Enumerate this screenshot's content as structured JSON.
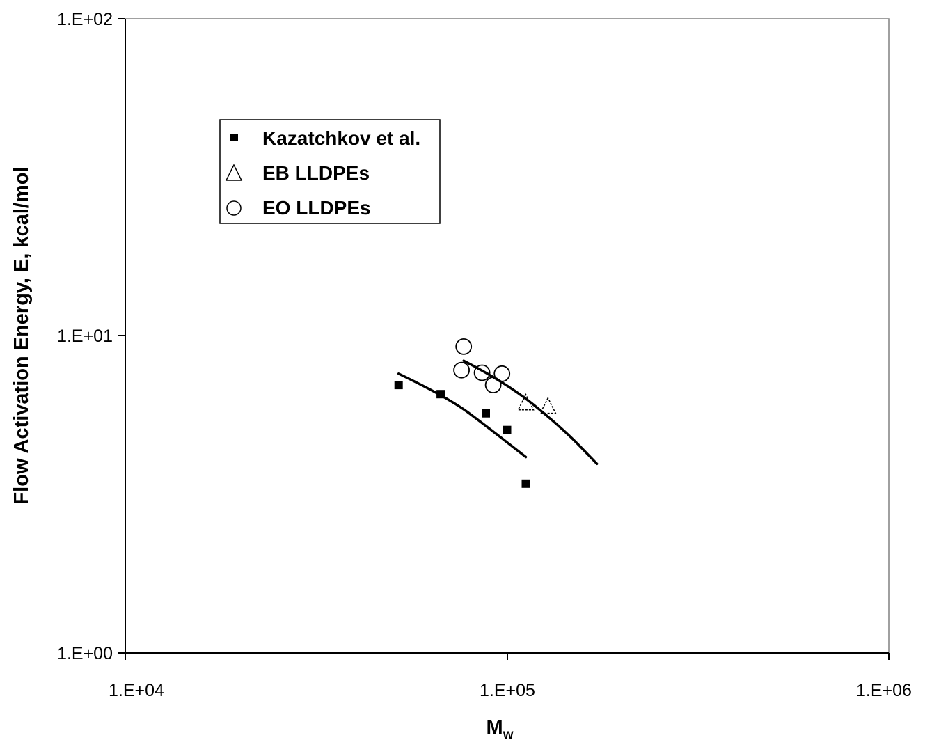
{
  "chart_data": {
    "type": "scatter",
    "title": "",
    "xlabel": "M",
    "xlabel_subscript": "w",
    "ylabel": "Flow Activation Energy, E, kcal/mol",
    "x_scale": "log",
    "y_scale": "log",
    "xlim": [
      10000,
      1000000
    ],
    "ylim": [
      1,
      100
    ],
    "x_ticks": [
      "1.E+04",
      "1.E+05",
      "1.E+06"
    ],
    "y_ticks": [
      "1.E+00",
      "1.E+01",
      "1.E+02"
    ],
    "grid": false,
    "legend_position": "upper-left",
    "series": [
      {
        "name": "Kazatchkov et al.",
        "marker": "filled-square",
        "color": "#000000",
        "points": [
          {
            "x": 52000,
            "y": 7.0
          },
          {
            "x": 67000,
            "y": 6.55
          },
          {
            "x": 88000,
            "y": 5.7
          },
          {
            "x": 100000,
            "y": 5.05
          },
          {
            "x": 112000,
            "y": 3.42
          }
        ]
      },
      {
        "name": "EB LLDPEs",
        "marker": "open-triangle",
        "color": "#000000",
        "points": [
          {
            "x": 112000,
            "y": 6.15
          },
          {
            "x": 128000,
            "y": 6.0
          }
        ]
      },
      {
        "name": "EO LLDPEs",
        "marker": "open-circle",
        "color": "#000000",
        "points": [
          {
            "x": 77000,
            "y": 9.25
          },
          {
            "x": 76000,
            "y": 7.8
          },
          {
            "x": 86000,
            "y": 7.65
          },
          {
            "x": 92000,
            "y": 7.0
          },
          {
            "x": 97000,
            "y": 7.6
          }
        ]
      }
    ],
    "fit_lines": [
      {
        "for_series": "Kazatchkov et al.",
        "points": [
          {
            "x": 52000,
            "y": 7.6
          },
          {
            "x": 70000,
            "y": 6.4
          },
          {
            "x": 90000,
            "y": 5.1
          },
          {
            "x": 112000,
            "y": 4.15
          }
        ]
      },
      {
        "for_series": "EO LLDPEs",
        "points": [
          {
            "x": 77000,
            "y": 8.35
          },
          {
            "x": 100000,
            "y": 7.1
          },
          {
            "x": 140000,
            "y": 5.1
          },
          {
            "x": 172000,
            "y": 3.95
          }
        ]
      }
    ]
  }
}
